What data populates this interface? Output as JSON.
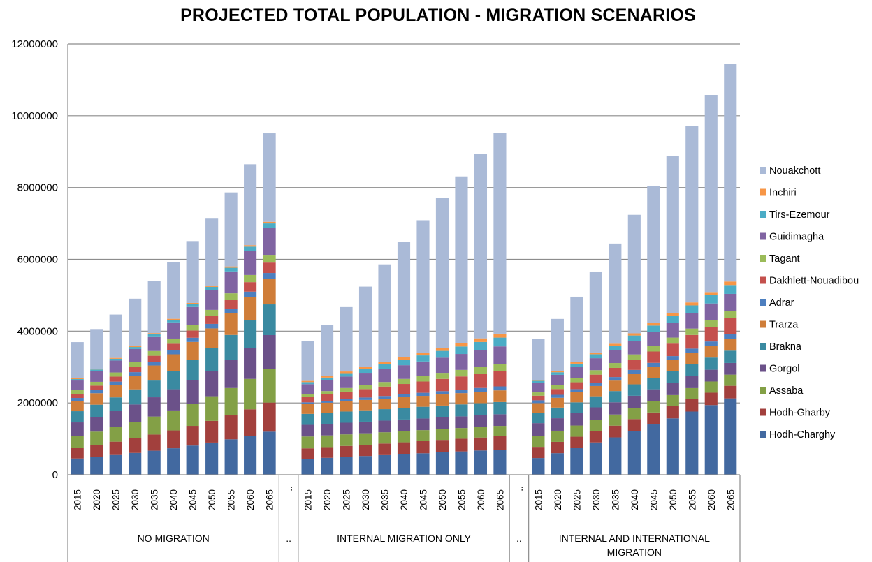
{
  "chart_data": {
    "type": "bar",
    "stacked": true,
    "title": "PROJECTED TOTAL POPULATION - MIGRATION SCENARIOS",
    "xlabel": "",
    "ylabel": "",
    "ylim": [
      0,
      12000000
    ],
    "yticks": [
      0,
      2000000,
      4000000,
      6000000,
      8000000,
      10000000,
      12000000
    ],
    "ytick_labels": [
      "0",
      "2000000",
      "4000000",
      "6000000",
      "8000000",
      "10000000",
      "12000000"
    ],
    "grid": true,
    "legend_position": "right",
    "separator_label": "..",
    "separator_tick_label": "..",
    "years": [
      "2015",
      "2020",
      "2025",
      "2030",
      "2035",
      "2040",
      "2045",
      "2050",
      "2055",
      "2060",
      "2065"
    ],
    "legend_order": [
      "Nouakchott",
      "Inchiri",
      "Tirs-Ezemour",
      "Guidimagha",
      "Tagant",
      "Dakhlett-Nouadibou",
      "Adrar",
      "Trarza",
      "Brakna",
      "Gorgol",
      "Assaba",
      "Hodh-Gharby",
      "Hodh-Charghy"
    ],
    "series_colors": {
      "Hodh-Charghy": "#4269a0",
      "Hodh-Gharby": "#a2403d",
      "Assaba": "#83a046",
      "Gorgol": "#6b5189",
      "Brakna": "#3a8aa1",
      "Trarza": "#cf7d39",
      "Adrar": "#4d7fbf",
      "Dakhlett-Nouadibou": "#c4504d",
      "Tagant": "#9bbb59",
      "Guidimagha": "#8064a2",
      "Tirs-Ezemour": "#4bacc6",
      "Inchiri": "#f79646",
      "Nouakchott": "#aabad7"
    },
    "groups": [
      {
        "label": "NO MIGRATION",
        "series": [
          {
            "name": "Hodh-Charghy",
            "values": [
              453000,
              499000,
              550000,
              607000,
              669000,
              737000,
              813000,
              896000,
              987000,
              1089000,
              1200000
            ]
          },
          {
            "name": "Hodh-Gharby",
            "values": [
              305000,
              336000,
              371000,
              409000,
              451000,
              497000,
              548000,
              604000,
              666000,
              734000,
              810000
            ]
          },
          {
            "name": "Assaba",
            "values": [
              330000,
              366000,
              407000,
              452000,
              501000,
              557000,
              618000,
              686000,
              762000,
              846000,
              940000
            ]
          },
          {
            "name": "Gorgol",
            "values": [
              370000,
              406000,
              446000,
              489000,
              537000,
              590000,
              647000,
              710000,
              780000,
              856000,
              940000
            ]
          },
          {
            "name": "Brakna",
            "values": [
              311000,
              344000,
              381000,
              421000,
              466000,
              516000,
              571000,
              631000,
              699000,
              773000,
              855000
            ]
          },
          {
            "name": "Trarza",
            "values": [
              292000,
              320000,
              350000,
              383000,
              419000,
              458000,
              501000,
              549000,
              600000,
              657000,
              720000
            ]
          },
          {
            "name": "Adrar",
            "values": [
              78000,
              84000,
              89000,
              96000,
              103000,
              110000,
              118000,
              126000,
              135000,
              145000,
              155000
            ]
          },
          {
            "name": "Dakhlett-Nouadibou",
            "values": [
              117000,
              128000,
              140000,
              154000,
              168000,
              184000,
              202000,
              221000,
              242000,
              265000,
              290000
            ]
          },
          {
            "name": "Tagant",
            "values": [
              97000,
              105000,
              114000,
              123000,
              133000,
              144000,
              156000,
              169000,
              183000,
              199000,
              215000
            ]
          },
          {
            "name": "Guidimagha",
            "values": [
              272000,
              301000,
              333000,
              368000,
              407000,
              450000,
              498000,
              551000,
              609000,
              674000,
              745000
            ]
          },
          {
            "name": "Tirs-Ezemour",
            "values": [
              39000,
              44000,
              50000,
              56000,
              63000,
              71000,
              80000,
              90000,
              102000,
              115000,
              130000
            ]
          },
          {
            "name": "Inchiri",
            "values": [
              20000,
              22000,
              24000,
              26000,
              28000,
              30000,
              33000,
              35000,
              38000,
              42000,
              45000
            ]
          },
          {
            "name": "Nouakchott",
            "values": [
              1010000,
              1104000,
              1207000,
              1320000,
              1443000,
              1577000,
              1724000,
              1885000,
              2061000,
              2253000,
              2465000
            ]
          }
        ]
      },
      {
        "label": "INTERNAL MIGRATION ONLY",
        "series": [
          {
            "name": "Hodh-Charghy",
            "values": [
              445000,
              471000,
              496000,
              522000,
              547000,
              573000,
              598000,
              624000,
              649000,
              675000,
              700000
            ]
          },
          {
            "name": "Hodh-Gharby",
            "values": [
              290000,
              298000,
              306000,
              314000,
              322000,
              330000,
              338000,
              346000,
              354000,
              362000,
              370000
            ]
          },
          {
            "name": "Assaba",
            "values": [
              330000,
              326000,
              322000,
              318000,
              314000,
              310000,
              306000,
              302000,
              298000,
              294000,
              290000
            ]
          },
          {
            "name": "Gorgol",
            "values": [
              325000,
              325000,
              325000,
              325000,
              325000,
              325000,
              325000,
              325000,
              325000,
              325000,
              325000
            ]
          },
          {
            "name": "Brakna",
            "values": [
              305000,
              309000,
              312000,
              316000,
              319000,
              323000,
              326000,
              330000,
              333000,
              337000,
              340000
            ]
          },
          {
            "name": "Trarza",
            "values": [
              272000,
              277000,
              283000,
              288000,
              293000,
              299000,
              304000,
              309000,
              314000,
              320000,
              325000
            ]
          },
          {
            "name": "Adrar",
            "values": [
              50000,
              56000,
              62000,
              68000,
              74000,
              80000,
              86000,
              92000,
              98000,
              104000,
              110000
            ]
          },
          {
            "name": "Dakhlett-Nouadibou",
            "values": [
              156000,
              182000,
              209000,
              235000,
              262000,
              288000,
              314000,
              341000,
              367000,
              394000,
              420000
            ]
          },
          {
            "name": "Tagant",
            "values": [
              72000,
              86000,
              100000,
              113000,
              127000,
              141000,
              155000,
              169000,
              182000,
              196000,
              210000
            ]
          },
          {
            "name": "Guidimagha",
            "values": [
              278000,
              299000,
              319000,
              340000,
              361000,
              382000,
              402000,
              423000,
              444000,
              464000,
              485000
            ]
          },
          {
            "name": "Tirs-Ezemour",
            "values": [
              58000,
              77000,
              95000,
              114000,
              133000,
              152000,
              170000,
              189000,
              208000,
              226000,
              245000
            ]
          },
          {
            "name": "Inchiri",
            "values": [
              33000,
              41000,
              48000,
              56000,
              64000,
              72000,
              79000,
              87000,
              95000,
              102000,
              110000
            ]
          },
          {
            "name": "Nouakchott",
            "values": [
              1106000,
              1423000,
              1793000,
              2231000,
              2719000,
              3205000,
              3687000,
              4173000,
              4643000,
              5131000,
              5590000
            ]
          }
        ]
      },
      {
        "label": "INTERNAL AND INTERNATIONAL MIGRATION",
        "label_lines": [
          "INTERNAL AND INTERNATIONAL",
          "MIGRATION"
        ],
        "series": [
          {
            "name": "Hodh-Charghy",
            "values": [
              465000,
              600000,
              740000,
              900000,
              1040000,
              1220000,
              1400000,
              1570000,
              1760000,
              1940000,
              2127000
            ]
          },
          {
            "name": "Hodh-Gharby",
            "values": [
              311000,
              315000,
              319000,
              323000,
              327000,
              331000,
              334000,
              338000,
              342000,
              346000,
              350000
            ]
          },
          {
            "name": "Assaba",
            "values": [
              311000,
              311000,
              311000,
              311000,
              311000,
              311000,
              311000,
              311000,
              311000,
              311000,
              311000
            ]
          },
          {
            "name": "Gorgol",
            "values": [
              350000,
              348000,
              345000,
              343000,
              340000,
              338000,
              335000,
              333000,
              330000,
              328000,
              325000
            ]
          },
          {
            "name": "Brakna",
            "values": [
              292000,
              297000,
              302000,
              308000,
              313000,
              318000,
              323000,
              328000,
              334000,
              339000,
              344000
            ]
          },
          {
            "name": "Trarza",
            "values": [
              266000,
              273000,
              279000,
              286000,
              292000,
              299000,
              305000,
              312000,
              318000,
              325000,
              331000
            ]
          },
          {
            "name": "Adrar",
            "values": [
              78000,
              83000,
              88000,
              93000,
              98000,
              103000,
              108000,
              113000,
              118000,
              123000,
              128000
            ]
          },
          {
            "name": "Dakhlett-Nouadibou",
            "values": [
              130000,
              161000,
              192000,
              224000,
              255000,
              286000,
              317000,
              348000,
              380000,
              411000,
              442000
            ]
          },
          {
            "name": "Tagant",
            "values": [
              91000,
              102000,
              113000,
              124000,
              135000,
              146000,
              156000,
              167000,
              178000,
              189000,
              200000
            ]
          },
          {
            "name": "Guidimagha",
            "values": [
              272000,
              293000,
              314000,
              334000,
              355000,
              376000,
              397000,
              418000,
              438000,
              459000,
              480000
            ]
          },
          {
            "name": "Tirs-Ezemour",
            "values": [
              52000,
              72000,
              91000,
              111000,
              130000,
              150000,
              169000,
              189000,
              208000,
              228000,
              247000
            ]
          },
          {
            "name": "Inchiri",
            "values": [
              25000,
              32000,
              39000,
              47000,
              54000,
              61000,
              68000,
              75000,
              83000,
              90000,
              97000
            ]
          },
          {
            "name": "Nouakchott",
            "values": [
              1137000,
              1453000,
              1827000,
              2256000,
              2790000,
              3301000,
              3817000,
              4368000,
              4910000,
              5491000,
              6058000
            ]
          }
        ]
      }
    ]
  }
}
